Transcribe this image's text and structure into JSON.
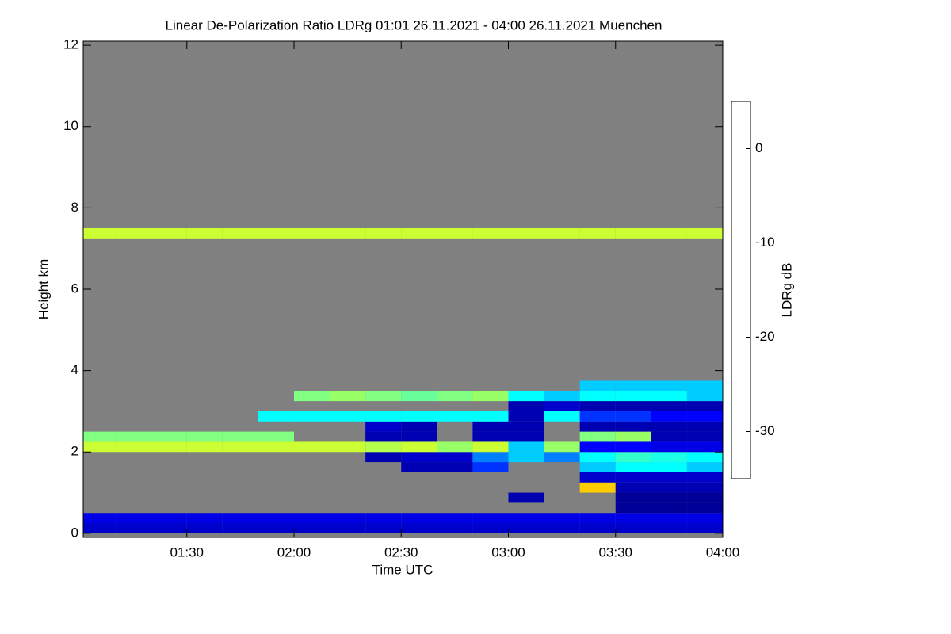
{
  "chart_data": {
    "type": "heatmap",
    "title": "Linear De-Polarization Ratio LDRg   01:01 26.11.2021 - 04:00 26.11.2021 Muenchen",
    "x_label": "Time UTC",
    "y_label": "Height km",
    "colorbar_label": "LDRg dB",
    "xlim": [
      61,
      240
    ],
    "xticks": [
      {
        "value": 90,
        "label": "01:30"
      },
      {
        "value": 120,
        "label": "02:00"
      },
      {
        "value": 150,
        "label": "02:30"
      },
      {
        "value": 180,
        "label": "03:00"
      },
      {
        "value": 210,
        "label": "03:30"
      },
      {
        "value": 240,
        "label": "04:00"
      }
    ],
    "ylim": [
      -0.1,
      12.1
    ],
    "yticks": [
      0,
      2,
      4,
      6,
      8,
      10,
      12
    ],
    "zlim": [
      -35,
      5
    ],
    "zticks": [
      0,
      -10,
      -20,
      -30
    ],
    "colormap": "jet",
    "background": "#808080",
    "x_bins": [
      61,
      70,
      80,
      90,
      100,
      110,
      120,
      130,
      140,
      150,
      160,
      170,
      180,
      190,
      200,
      210,
      220,
      230,
      240
    ],
    "y_bins": [
      0,
      0.25,
      0.5,
      0.75,
      1,
      1.25,
      1.5,
      1.75,
      2,
      2.25,
      2.5,
      2.75,
      3,
      3.25,
      3.5,
      3.75,
      4,
      7.25,
      7.5
    ],
    "z": [
      [
        -32,
        -32,
        -32,
        -32,
        -32,
        -32,
        -32,
        -32,
        -32,
        -32,
        -32,
        -32,
        -32,
        -32,
        -32,
        -32,
        -32,
        -32
      ],
      [
        -31,
        -31,
        -31,
        -31,
        -31,
        -31,
        -31,
        -31,
        -31,
        -31,
        -31,
        -31,
        -31,
        -31,
        -31,
        -31,
        -31,
        -31
      ],
      [
        null,
        null,
        null,
        null,
        null,
        null,
        null,
        null,
        null,
        null,
        null,
        null,
        null,
        null,
        null,
        -34,
        -34,
        -34
      ],
      [
        null,
        null,
        null,
        null,
        null,
        null,
        null,
        null,
        null,
        null,
        null,
        null,
        -33,
        null,
        null,
        -34,
        -34,
        -34
      ],
      [
        null,
        null,
        null,
        null,
        null,
        null,
        null,
        null,
        null,
        null,
        null,
        null,
        null,
        null,
        -8,
        -33,
        -33,
        -33
      ],
      [
        null,
        null,
        null,
        null,
        null,
        null,
        null,
        null,
        null,
        null,
        null,
        null,
        null,
        null,
        -32,
        -32,
        -32,
        -32
      ],
      [
        null,
        null,
        null,
        null,
        null,
        null,
        null,
        null,
        null,
        -33,
        -33,
        -28,
        null,
        null,
        -22,
        -20,
        -20,
        -22
      ],
      [
        null,
        null,
        null,
        null,
        null,
        null,
        null,
        null,
        -33,
        -32,
        -32,
        -25,
        -22,
        -25,
        -20,
        -18,
        -19,
        -20
      ],
      [
        -12,
        -12,
        -12,
        -12,
        -12,
        -12,
        -12,
        -12,
        -13,
        -12,
        -14,
        -12,
        -22,
        -14,
        -30,
        -30,
        -31,
        -31
      ],
      [
        -15,
        -15,
        -15,
        -15,
        -15,
        -15,
        null,
        null,
        -33,
        -33,
        null,
        -33,
        -33,
        null,
        -15,
        -14,
        -33,
        -33
      ],
      [
        null,
        null,
        null,
        null,
        null,
        null,
        null,
        null,
        -32,
        -33,
        null,
        -33,
        -33,
        null,
        -33,
        -33,
        -33,
        -33
      ],
      [
        null,
        null,
        null,
        null,
        null,
        -20,
        -20,
        -20,
        -20,
        -20,
        -20,
        -20,
        -33,
        -20,
        -28,
        -28,
        -30,
        -30
      ],
      [
        null,
        null,
        null,
        null,
        null,
        null,
        null,
        null,
        null,
        null,
        null,
        null,
        -33,
        -32,
        -33,
        -33,
        -33,
        -33
      ],
      [
        null,
        null,
        null,
        null,
        null,
        null,
        -15,
        -14,
        -15,
        -16,
        -15,
        -14,
        -20,
        -22,
        -20,
        -20,
        -20,
        -22
      ],
      [
        null,
        null,
        null,
        null,
        null,
        null,
        null,
        null,
        null,
        null,
        null,
        null,
        null,
        null,
        -22,
        -22,
        -22,
        -22
      ],
      [
        null,
        null,
        null,
        null,
        null,
        null,
        null,
        null,
        null,
        null,
        null,
        null,
        null,
        null,
        null,
        null,
        null,
        null
      ],
      [
        null,
        null,
        null,
        null,
        null,
        null,
        null,
        null,
        null,
        null,
        null,
        null,
        null,
        null,
        null,
        null,
        null,
        null
      ],
      [
        -12,
        -12,
        -12,
        -12,
        -12,
        -12,
        -12,
        -12,
        -12,
        -12,
        -12,
        -12,
        -12,
        -12,
        -12,
        -12,
        -12,
        -12
      ]
    ]
  }
}
